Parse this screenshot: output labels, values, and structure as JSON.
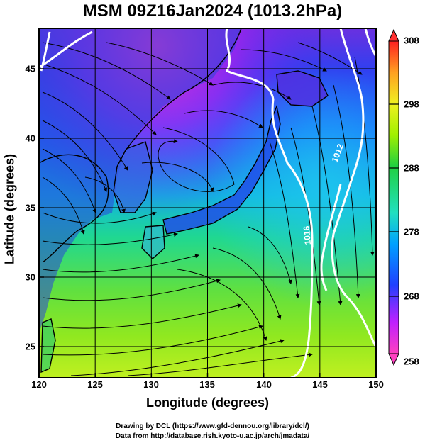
{
  "title": "MSM 09Z16Jan2024 (1013.2hPa)",
  "axes": {
    "xlabel": "Longitude (degrees)",
    "ylabel": "Latitude  (degrees)",
    "xticks": [
      "120",
      "125",
      "130",
      "135",
      "140",
      "145",
      "150"
    ],
    "yticks": [
      "25",
      "30",
      "35",
      "40",
      "45"
    ]
  },
  "colorbar": {
    "ticks": [
      "308",
      "298",
      "288",
      "278",
      "268",
      "258"
    ],
    "range": [
      258,
      308
    ],
    "colors": [
      "#ff40c0",
      "#c020ff",
      "#2040ff",
      "#00a0ff",
      "#20e0c0",
      "#20d040",
      "#a0f000",
      "#f0f020",
      "#ffa020",
      "#ff2020"
    ]
  },
  "contours": {
    "color": "#ffffff",
    "labels": [
      "1012",
      "1016"
    ]
  },
  "credits": {
    "line1": "Drawing by DCL (https://www.gfd-dennou.org/library/dcl/)",
    "line2": "Data from http://database.rish.kyoto-u.ac.jp/arch/jmadata/"
  },
  "chart_data": {
    "type": "heatmap",
    "title": "MSM 09Z16Jan2024 (1013.2hPa)",
    "xlabel": "Longitude (degrees)",
    "ylabel": "Latitude  (degrees)",
    "xlim": [
      120,
      150
    ],
    "ylim": [
      22.4,
      47.6
    ],
    "x_ticks": [
      120,
      125,
      130,
      135,
      140,
      145,
      150
    ],
    "y_ticks": [
      25,
      30,
      35,
      40,
      45
    ],
    "colorbar_range": [
      258,
      308
    ],
    "colorbar_ticks": [
      258,
      268,
      278,
      288,
      298,
      308
    ],
    "grid": true,
    "overlays": [
      "streamlines",
      "pressure contours (white)",
      "coastlines"
    ],
    "contour_labels": [
      1012,
      1016
    ]
  }
}
